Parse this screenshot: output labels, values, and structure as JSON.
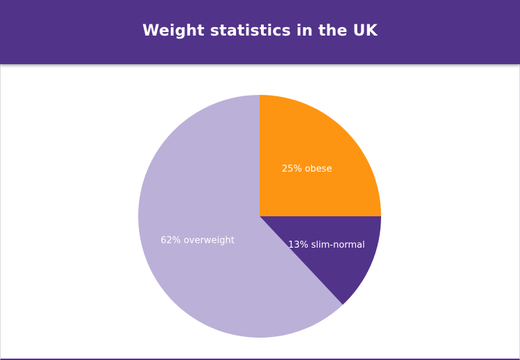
{
  "header": {
    "title": "Weight statistics in the UK"
  },
  "colors": {
    "header_bg": "#52338a",
    "background": "#ffffff"
  },
  "chart_data": {
    "type": "pie",
    "title": "Weight statistics in the UK",
    "start_angle_deg": 0,
    "direction": "clockwise",
    "slices": [
      {
        "label": "25% obese",
        "value": 25,
        "color": "#fd9512"
      },
      {
        "label": "13% slim-normal",
        "value": 13,
        "color": "#52338a"
      },
      {
        "label": "62% overweight",
        "value": 62,
        "color": "#bbb0d8"
      }
    ]
  }
}
